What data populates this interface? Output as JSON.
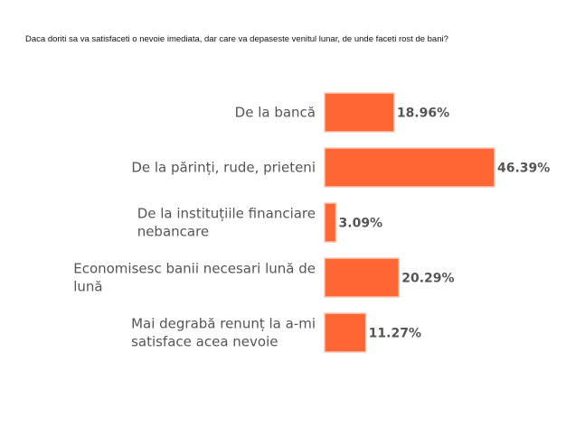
{
  "chart_data": {
    "type": "bar",
    "orientation": "horizontal",
    "title": "Daca doriti sa va satisfaceti o nevoie imediata, dar care va depaseste venitul lunar, de unde faceti rost de bani?",
    "categories": [
      [
        "De la bancă"
      ],
      [
        "De la părinți, rude, prieteni"
      ],
      [
        "De la instituțiile financiare",
        "nebancare"
      ],
      [
        "Economisesc banii necesari lună de",
        "lună"
      ],
      [
        "Mai degrabă renunț la a-mi",
        "satisface acea nevoie"
      ]
    ],
    "values": [
      18.96,
      46.39,
      3.09,
      20.29,
      11.27
    ],
    "value_labels": [
      "18.96%",
      "46.39%",
      "3.09%",
      "20.29%",
      "11.27%"
    ],
    "unit": "%",
    "xlim": [
      0,
      46.39
    ],
    "bar_color": "#ff6633",
    "grid": false,
    "legend": "none"
  }
}
